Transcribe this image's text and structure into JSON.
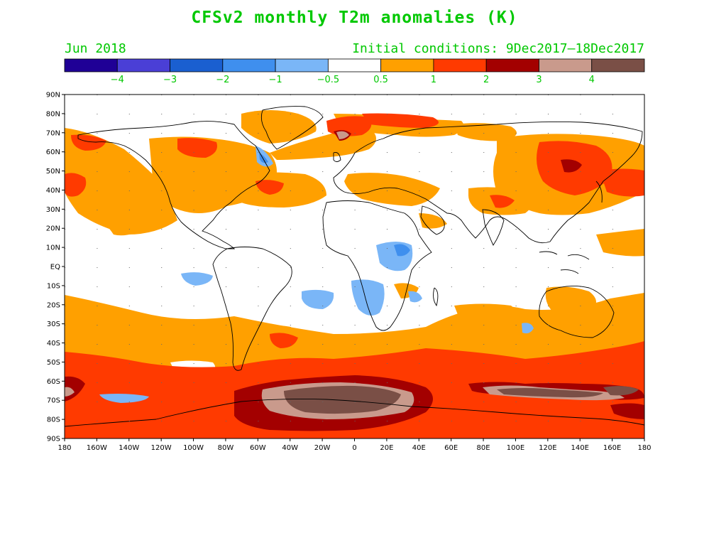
{
  "title": "CFSv2 monthly T2m anomalies (K)",
  "subtitle_left": "Jun 2018",
  "subtitle_right": "Initial conditions: 9Dec2017–18Dec2017",
  "colorbar": {
    "colors": [
      "#1f0096",
      "#4a3fd6",
      "#1a5fd0",
      "#3f8fee",
      "#7ab6f7",
      "#ffffff",
      "#ffa000",
      "#ff3a00",
      "#a30000",
      "#c99a8c",
      "#7a4f46"
    ],
    "labels": [
      "−4",
      "−3",
      "−2",
      "−1",
      "−0.5",
      "0.5",
      "1",
      "2",
      "3",
      "4"
    ]
  },
  "lat_labels": [
    "90N",
    "80N",
    "70N",
    "60N",
    "50N",
    "40N",
    "30N",
    "20N",
    "10N",
    "EQ",
    "10S",
    "20S",
    "30S",
    "40S",
    "50S",
    "60S",
    "70S",
    "80S",
    "90S"
  ],
  "lon_labels": [
    "180",
    "160W",
    "140W",
    "120W",
    "100W",
    "80W",
    "60W",
    "40W",
    "20W",
    "0",
    "20E",
    "40E",
    "60E",
    "80E",
    "100E",
    "120E",
    "140E",
    "160E",
    "180"
  ],
  "colors": {
    "text_green": "#00c800",
    "warm1": "#ffa000",
    "warm2": "#ff3a00",
    "warm3": "#a30000",
    "warm4": "#c99a8c",
    "warm5": "#7a4f46",
    "cool1": "#7ab6f7",
    "cool2": "#3f8fee"
  }
}
